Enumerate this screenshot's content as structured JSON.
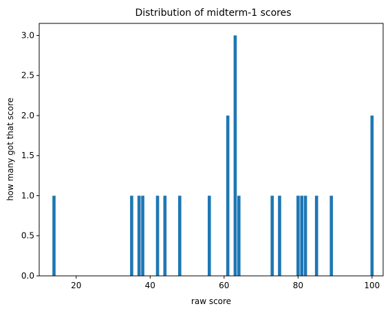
{
  "chart_data": {
    "type": "bar",
    "title": "Distribution of midterm-1 scores",
    "xlabel": "raw score",
    "ylabel": "how many got that score",
    "xlim": [
      10,
      103
    ],
    "ylim": [
      0,
      3.15
    ],
    "xticks": [
      "20",
      "40",
      "60",
      "80",
      "100"
    ],
    "yticks": [
      "0.0",
      "0.5",
      "1.0",
      "1.5",
      "2.0",
      "2.5",
      "3.0"
    ],
    "grid": false,
    "bin_width": 0.86,
    "bar_color": "#1f77b4",
    "bars": [
      {
        "x": 14,
        "count": 1
      },
      {
        "x": 35,
        "count": 1
      },
      {
        "x": 37,
        "count": 1
      },
      {
        "x": 38,
        "count": 1
      },
      {
        "x": 42,
        "count": 1
      },
      {
        "x": 44,
        "count": 1
      },
      {
        "x": 48,
        "count": 1
      },
      {
        "x": 56,
        "count": 1
      },
      {
        "x": 61,
        "count": 2
      },
      {
        "x": 63,
        "count": 3
      },
      {
        "x": 64,
        "count": 1
      },
      {
        "x": 73,
        "count": 1
      },
      {
        "x": 75,
        "count": 1
      },
      {
        "x": 80,
        "count": 1
      },
      {
        "x": 81,
        "count": 1
      },
      {
        "x": 82,
        "count": 1
      },
      {
        "x": 85,
        "count": 1
      },
      {
        "x": 89,
        "count": 1
      },
      {
        "x": 100,
        "count": 2
      }
    ]
  }
}
